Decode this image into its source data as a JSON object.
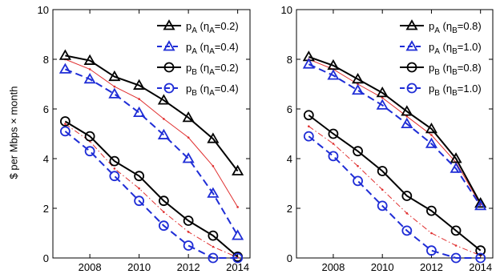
{
  "figure": {
    "ylabel": "$ per Mbps × month"
  },
  "chart_data": [
    {
      "type": "line",
      "title": "",
      "xlabel": "",
      "ylabel": "$ per Mbps × month",
      "x": [
        2007,
        2008,
        2009,
        2010,
        2011,
        2012,
        2013,
        2014
      ],
      "xlim": [
        2006.5,
        2014.5
      ],
      "ylim": [
        0,
        10
      ],
      "xticks": [
        2008,
        2010,
        2012,
        2014
      ],
      "yticks": [
        0,
        2,
        4,
        6,
        8,
        10
      ],
      "grid": false,
      "legend_position": "top-right",
      "series": [
        {
          "label": {
            "base": "p",
            "sub": "A",
            "param": "η",
            "psub": "A",
            "value": "0.2"
          },
          "values": [
            8.15,
            7.95,
            7.3,
            6.95,
            6.35,
            5.65,
            4.8,
            3.5
          ],
          "color": "#000000",
          "marker": "triangle",
          "dash": "solid",
          "in_legend": true
        },
        {
          "label": {
            "base": "p",
            "sub": "A",
            "param": "η",
            "psub": "A",
            "value": "0.4"
          },
          "values": [
            7.6,
            7.2,
            6.6,
            5.85,
            4.95,
            4.0,
            2.6,
            0.9
          ],
          "color": "#1f2dd6",
          "marker": "triangle",
          "dash": "dashed",
          "in_legend": true
        },
        {
          "label": {
            "base": "p",
            "sub": "B",
            "param": "η",
            "psub": "A",
            "value": "0.2"
          },
          "values": [
            5.5,
            4.9,
            3.9,
            3.3,
            2.3,
            1.5,
            0.9,
            0.05
          ],
          "color": "#000000",
          "marker": "circle",
          "dash": "solid",
          "in_legend": true
        },
        {
          "label": {
            "base": "p",
            "sub": "B",
            "param": "η",
            "psub": "A",
            "value": "0.4"
          },
          "values": [
            5.1,
            4.3,
            3.3,
            2.3,
            1.3,
            0.5,
            0.0,
            0.0
          ],
          "color": "#1f2dd6",
          "marker": "circle",
          "dash": "dashed",
          "in_legend": true
        },
        {
          "values": [
            8.0,
            7.6,
            6.9,
            6.4,
            5.6,
            4.85,
            3.7,
            2.05
          ],
          "color": "#e03030",
          "marker": "dot",
          "dash": "solid",
          "in_legend": false
        },
        {
          "values": [
            5.4,
            4.7,
            3.6,
            2.8,
            1.85,
            1.05,
            0.45,
            0.02
          ],
          "color": "#e03030",
          "marker": "dot",
          "dash": "dashdot",
          "in_legend": false
        }
      ]
    },
    {
      "type": "line",
      "title": "",
      "xlabel": "",
      "ylabel": "",
      "x": [
        2007,
        2008,
        2009,
        2010,
        2011,
        2012,
        2013,
        2014
      ],
      "xlim": [
        2006.5,
        2014.5
      ],
      "ylim": [
        0,
        10
      ],
      "xticks": [
        2008,
        2010,
        2012,
        2014
      ],
      "yticks": [
        0,
        2,
        4,
        6,
        8,
        10
      ],
      "grid": false,
      "legend_position": "top-right",
      "series": [
        {
          "label": {
            "base": "p",
            "sub": "A",
            "param": "η",
            "psub": "B",
            "value": "0.8"
          },
          "values": [
            8.1,
            7.75,
            7.2,
            6.65,
            5.9,
            5.2,
            4.0,
            2.2
          ],
          "color": "#000000",
          "marker": "triangle",
          "dash": "solid",
          "in_legend": true
        },
        {
          "label": {
            "base": "p",
            "sub": "A",
            "param": "η",
            "psub": "B",
            "value": "1.0"
          },
          "values": [
            7.8,
            7.35,
            6.75,
            6.15,
            5.4,
            4.6,
            3.6,
            2.1
          ],
          "color": "#1f2dd6",
          "marker": "triangle",
          "dash": "dashed",
          "in_legend": true
        },
        {
          "label": {
            "base": "p",
            "sub": "B",
            "param": "η",
            "psub": "B",
            "value": "0.8"
          },
          "values": [
            5.75,
            5.0,
            4.3,
            3.5,
            2.5,
            1.9,
            1.1,
            0.3
          ],
          "color": "#000000",
          "marker": "circle",
          "dash": "solid",
          "in_legend": true
        },
        {
          "label": {
            "base": "p",
            "sub": "B",
            "param": "η",
            "psub": "B",
            "value": "1.0"
          },
          "values": [
            4.9,
            4.1,
            3.1,
            2.1,
            1.1,
            0.3,
            0.0,
            0.0
          ],
          "color": "#1f2dd6",
          "marker": "circle",
          "dash": "dashed",
          "in_legend": true
        },
        {
          "values": [
            8.0,
            7.6,
            7.0,
            6.45,
            5.7,
            4.95,
            3.85,
            2.15
          ],
          "color": "#e03030",
          "marker": "dot",
          "dash": "solid",
          "in_legend": false
        },
        {
          "values": [
            5.3,
            4.6,
            3.7,
            2.75,
            1.8,
            1.0,
            0.5,
            0.1
          ],
          "color": "#e03030",
          "marker": "dot",
          "dash": "dashdot",
          "in_legend": false
        }
      ]
    }
  ]
}
